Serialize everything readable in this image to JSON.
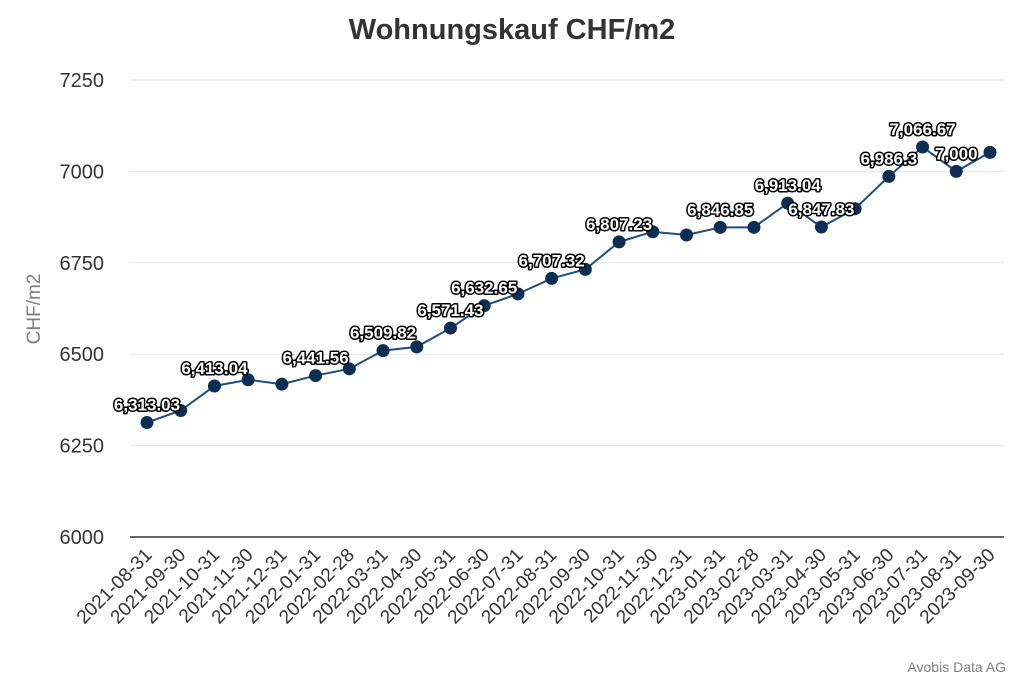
{
  "chart_data": {
    "type": "line",
    "title": "Wohnungskauf CHF/m2",
    "xlabel": "",
    "ylabel": "CHF/m2",
    "ylim": [
      6000,
      7250
    ],
    "yticks": [
      "6000",
      "6250",
      "6500",
      "6750",
      "7000",
      "7250"
    ],
    "grid": true,
    "legend": "none",
    "categories": [
      "2021-08-31",
      "2021-09-30",
      "2021-10-31",
      "2021-11-30",
      "2021-12-31",
      "2022-01-31",
      "2022-02-28",
      "2022-03-31",
      "2022-04-30",
      "2022-05-31",
      "2022-06-30",
      "2022-07-31",
      "2022-08-31",
      "2022-09-30",
      "2022-10-31",
      "2022-11-30",
      "2022-12-31",
      "2023-01-31",
      "2023-02-28",
      "2023-03-31",
      "2023-04-30",
      "2023-05-31",
      "2023-06-30",
      "2023-07-31",
      "2023-08-31",
      "2023-09-30"
    ],
    "series": [
      {
        "values": [
          6313.03,
          6346,
          6413.04,
          6430,
          6418,
          6441.56,
          6460,
          6509.82,
          6520,
          6571.43,
          6632.65,
          6665,
          6707.32,
          6732,
          6807.23,
          6835,
          6826,
          6846.85,
          6847,
          6913.04,
          6847.83,
          6898,
          6986.3,
          7066.67,
          7000,
          7052
        ],
        "labels": [
          "6,313.03",
          "",
          "6,413.04",
          "",
          "",
          "6,441.56",
          "",
          "6,509.82",
          "",
          "6,571.43",
          "6,632.65",
          "",
          "6,707.32",
          "",
          "6,807.23",
          "",
          "",
          "6,846.85",
          "",
          "6,913.04",
          "6,847.83",
          "",
          "6,986.3",
          "7,066.67",
          "7,000",
          ""
        ]
      }
    ],
    "colors": {
      "line": "#1f4e79",
      "marker": "#0d2e52",
      "grid": "#e6e6e6",
      "axis": "#333333"
    }
  },
  "footer": {
    "credit": "Avobis Data AG"
  }
}
